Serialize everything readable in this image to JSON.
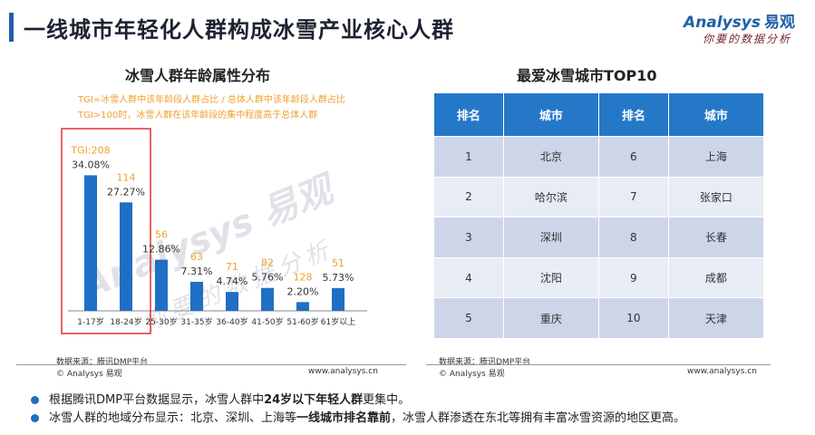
{
  "header": {
    "title": "一线城市年轻化人群构成冰雪产业核心人群",
    "logo_brand_en": "Analysys",
    "logo_brand_cn": "易观",
    "logo_slogan": "你要的数据分析"
  },
  "left_panel": {
    "tgi_note_line1": "TGI=冰雪人群中该年龄段人群占比 / 总体人群中该年龄段人群占比",
    "tgi_note_line2": "TGI>100时，冰雪人群在该年龄段的集中程度高于总体人群",
    "source": "数据来源：腾讯DMP平台",
    "footer_copyright": "© Analysys 易观",
    "footer_url": "www.analysys.cn"
  },
  "chart_data": {
    "type": "bar",
    "title": "冰雪人群年龄属性分布",
    "categories": [
      "1-17岁",
      "18-24岁",
      "25-30岁",
      "31-35岁",
      "36-40岁",
      "41-50岁",
      "51-60岁",
      "61岁以上"
    ],
    "values": [
      34.08,
      27.27,
      12.86,
      7.31,
      4.74,
      5.76,
      2.2,
      5.73
    ],
    "value_labels": [
      "34.08%",
      "27.27%",
      "12.86%",
      "7.31%",
      "4.74%",
      "5.76%",
      "2.20%",
      "5.73%"
    ],
    "tgi": [
      208,
      114,
      56,
      63,
      71,
      82,
      128,
      51
    ],
    "tgi_labels": [
      "TGI:208",
      "114",
      "56",
      "63",
      "71",
      "82",
      "128",
      "51"
    ],
    "ylim": [
      0,
      36
    ],
    "highlight": [
      "1-17岁",
      "18-24岁"
    ],
    "colors": {
      "bar": "#1f6fc4",
      "tgi": "#f0a030",
      "highlight_border": "#e03030"
    }
  },
  "right_panel": {
    "title": "最爱冰雪城市TOP10",
    "headers": [
      "排名",
      "城市",
      "排名",
      "城市"
    ],
    "rows": [
      [
        "1",
        "北京",
        "6",
        "上海"
      ],
      [
        "2",
        "哈尔滨",
        "7",
        "张家口"
      ],
      [
        "3",
        "深圳",
        "8",
        "长春"
      ],
      [
        "4",
        "沈阳",
        "9",
        "成都"
      ],
      [
        "5",
        "重庆",
        "10",
        "天津"
      ]
    ],
    "source": "数据来源：腾讯DMP平台",
    "footer_copyright": "© Analysys 易观",
    "footer_url": "www.analysys.cn"
  },
  "bullets": [
    {
      "pre": "根据腾讯DMP平台数据显示，冰雪人群中",
      "bold": "24岁以下年轻人群",
      "post": "更集中。"
    },
    {
      "pre": "冰雪人群的地域分布显示：北京、深圳、上海等",
      "bold": "一线城市排名靠前",
      "post": "，冰雪人群渗透在东北等拥有丰富冰雪资源的地区更高。"
    }
  ],
  "colors": {
    "accent": "#1f5fa8",
    "table_header": "#2577c8",
    "row_odd": "#cdd5e9",
    "row_even": "#e8ecf5"
  }
}
